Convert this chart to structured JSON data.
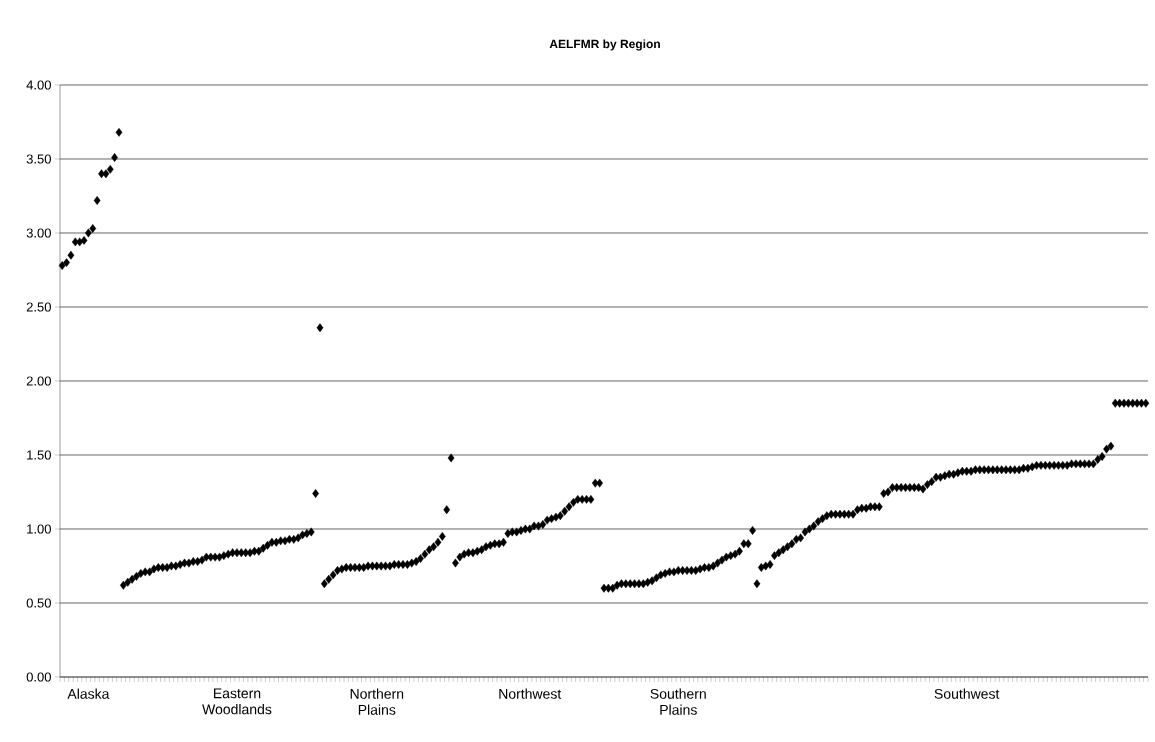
{
  "chart_data": {
    "type": "scatter",
    "title": "AELFMR by Region",
    "categories": [
      null,
      null,
      null,
      null,
      null,
      null,
      "Alaska",
      null,
      null,
      null,
      null,
      null,
      null,
      null,
      null,
      null,
      null,
      null,
      null,
      null,
      null,
      null,
      null,
      null,
      null,
      null,
      null,
      null,
      null,
      null,
      null,
      null,
      null,
      null,
      null,
      null,
      null,
      null,
      null,
      null,
      "Eastern Woodlands",
      null,
      null,
      null,
      null,
      null,
      null,
      null,
      null,
      null,
      null,
      null,
      null,
      null,
      null,
      null,
      null,
      null,
      null,
      null,
      null,
      null,
      null,
      null,
      null,
      null,
      null,
      null,
      null,
      null,
      null,
      null,
      "Northern Plains",
      null,
      null,
      null,
      null,
      null,
      null,
      null,
      null,
      null,
      null,
      null,
      null,
      null,
      null,
      null,
      null,
      null,
      null,
      null,
      null,
      null,
      null,
      null,
      null,
      null,
      null,
      null,
      null,
      null,
      null,
      null,
      null,
      null,
      null,
      "Northwest",
      null,
      null,
      null,
      null,
      null,
      null,
      null,
      null,
      null,
      null,
      null,
      null,
      null,
      null,
      null,
      null,
      null,
      null,
      null,
      null,
      null,
      null,
      null,
      null,
      null,
      null,
      null,
      null,
      null,
      null,
      null,
      null,
      null,
      "Southern Plains",
      null,
      null,
      null,
      null,
      null,
      null,
      null,
      null,
      null,
      null,
      null,
      null,
      null,
      null,
      null,
      null,
      null,
      null,
      null,
      null,
      null,
      null,
      null,
      null,
      null,
      null,
      null,
      null,
      null,
      null,
      null,
      null,
      null,
      null,
      null,
      null,
      null,
      null,
      null,
      null,
      null,
      null,
      null,
      null,
      null,
      null,
      null,
      null,
      null,
      null,
      null,
      null,
      null,
      null,
      null,
      null,
      null,
      null,
      null,
      null,
      null,
      null,
      null,
      null,
      null,
      "Southwest",
      null,
      null,
      null,
      null,
      null,
      null,
      null,
      null,
      null,
      null,
      null,
      null,
      null,
      null,
      null,
      null,
      null,
      null,
      null,
      null,
      null,
      null,
      null,
      null,
      null,
      null,
      null,
      null,
      null,
      null,
      null,
      null,
      null,
      null,
      null,
      null,
      null,
      null,
      null,
      null,
      null
    ],
    "values": [
      2.78,
      2.8,
      2.85,
      2.94,
      2.94,
      2.95,
      3.0,
      3.03,
      3.22,
      3.4,
      3.4,
      3.43,
      3.51,
      3.68,
      0.62,
      0.64,
      0.66,
      0.68,
      0.7,
      0.71,
      0.71,
      0.73,
      0.74,
      0.74,
      0.74,
      0.75,
      0.75,
      0.76,
      0.77,
      0.77,
      0.78,
      0.78,
      0.79,
      0.81,
      0.81,
      0.81,
      0.81,
      0.82,
      0.83,
      0.84,
      0.84,
      0.84,
      0.84,
      0.84,
      0.85,
      0.85,
      0.87,
      0.89,
      0.91,
      0.91,
      0.92,
      0.92,
      0.93,
      0.93,
      0.94,
      0.96,
      0.97,
      0.98,
      1.24,
      2.36,
      0.63,
      0.66,
      0.69,
      0.72,
      0.73,
      0.74,
      0.74,
      0.74,
      0.74,
      0.74,
      0.75,
      0.75,
      0.75,
      0.75,
      0.75,
      0.75,
      0.76,
      0.76,
      0.76,
      0.76,
      0.77,
      0.78,
      0.8,
      0.83,
      0.86,
      0.88,
      0.91,
      0.95,
      1.13,
      1.48,
      0.77,
      0.81,
      0.83,
      0.84,
      0.84,
      0.85,
      0.86,
      0.88,
      0.89,
      0.9,
      0.9,
      0.91,
      0.97,
      0.98,
      0.98,
      0.99,
      1.0,
      1.0,
      1.02,
      1.02,
      1.03,
      1.06,
      1.07,
      1.08,
      1.09,
      1.12,
      1.15,
      1.18,
      1.2,
      1.2,
      1.2,
      1.2,
      1.31,
      1.31,
      0.6,
      0.6,
      0.6,
      0.62,
      0.63,
      0.63,
      0.63,
      0.63,
      0.63,
      0.63,
      0.64,
      0.65,
      0.67,
      0.69,
      0.7,
      0.71,
      0.71,
      0.72,
      0.72,
      0.72,
      0.72,
      0.72,
      0.73,
      0.74,
      0.74,
      0.75,
      0.77,
      0.79,
      0.81,
      0.82,
      0.83,
      0.85,
      0.9,
      0.9,
      0.99,
      0.63,
      0.74,
      0.75,
      0.76,
      0.82,
      0.84,
      0.86,
      0.88,
      0.9,
      0.93,
      0.94,
      0.98,
      1.0,
      1.02,
      1.05,
      1.07,
      1.09,
      1.1,
      1.1,
      1.1,
      1.1,
      1.1,
      1.1,
      1.13,
      1.14,
      1.14,
      1.15,
      1.15,
      1.15,
      1.24,
      1.25,
      1.28,
      1.28,
      1.28,
      1.28,
      1.28,
      1.28,
      1.28,
      1.27,
      1.3,
      1.32,
      1.35,
      1.35,
      1.36,
      1.37,
      1.37,
      1.38,
      1.39,
      1.39,
      1.39,
      1.4,
      1.4,
      1.4,
      1.4,
      1.4,
      1.4,
      1.4,
      1.4,
      1.4,
      1.4,
      1.4,
      1.41,
      1.41,
      1.42,
      1.43,
      1.43,
      1.43,
      1.43,
      1.43,
      1.43,
      1.43,
      1.43,
      1.44,
      1.44,
      1.44,
      1.44,
      1.44,
      1.44,
      1.47,
      1.49,
      1.54,
      1.56,
      1.85,
      1.85,
      1.85,
      1.85,
      1.85,
      1.85,
      1.85,
      1.85
    ],
    "color": "#000000",
    "marker": "diamond",
    "grid": "y",
    "ylim": [
      0,
      4
    ],
    "yticks": [
      {
        "value": 0,
        "label": "0.00"
      },
      {
        "value": 0.5,
        "label": "0.50"
      },
      {
        "value": 1,
        "label": "1.00"
      },
      {
        "value": 1.5,
        "label": "1.50"
      },
      {
        "value": 2,
        "label": "2.00"
      },
      {
        "value": 2.5,
        "label": "2.50"
      },
      {
        "value": 3,
        "label": "3.00"
      },
      {
        "value": 3.5,
        "label": "3.50"
      },
      {
        "value": 4,
        "label": "4.00"
      }
    ]
  }
}
